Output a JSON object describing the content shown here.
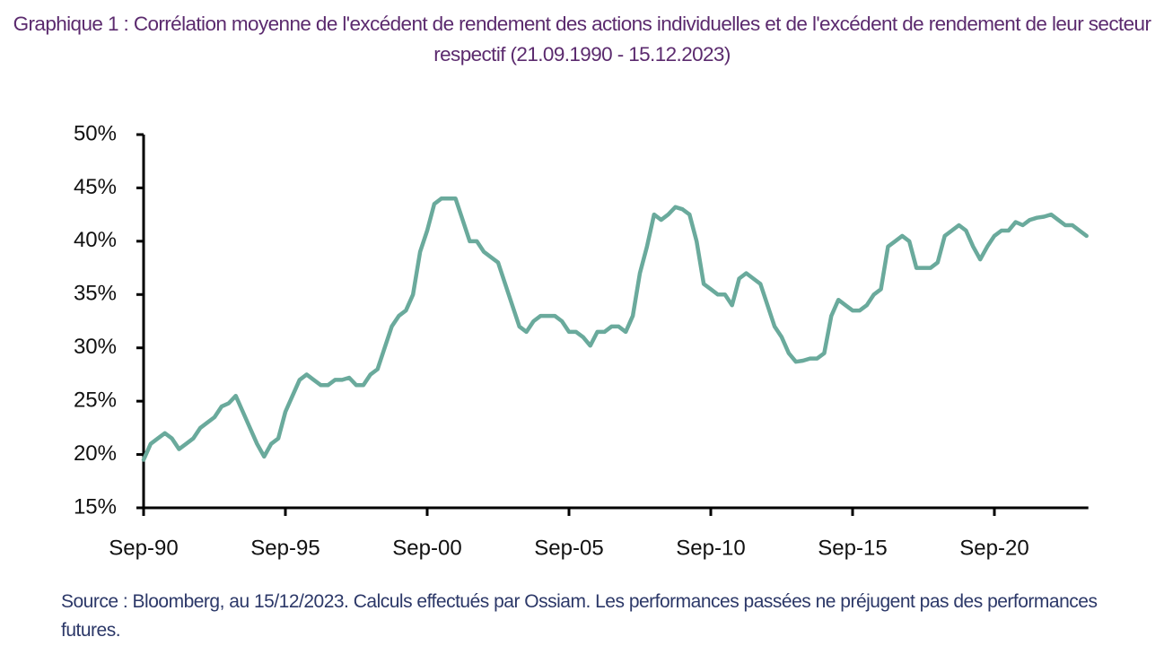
{
  "chart_data": {
    "type": "line",
    "title": "Graphique 1 : Corrélation moyenne de l'excédent de rendement des actions individuelles et de l'excédent de rendement de leur secteur respectif (21.09.1990 - 15.12.2023)",
    "source": "Source : Bloomberg, au 15/12/2023. Calculs effectués par Ossiam. Les performances passées ne préjugent pas des performances futures.",
    "categories": [
      "Sep-90",
      null,
      null,
      null,
      null,
      null,
      null,
      null,
      null,
      null,
      null,
      null,
      null,
      null,
      null,
      null,
      null,
      null,
      null,
      null,
      "Sep-95",
      null,
      null,
      null,
      null,
      null,
      null,
      null,
      null,
      null,
      null,
      null,
      null,
      null,
      null,
      null,
      null,
      null,
      null,
      null,
      "Sep-00",
      null,
      null,
      null,
      null,
      null,
      null,
      null,
      null,
      null,
      null,
      null,
      null,
      null,
      null,
      null,
      null,
      null,
      null,
      null,
      "Sep-05",
      null,
      null,
      null,
      null,
      null,
      null,
      null,
      null,
      null,
      null,
      null,
      null,
      null,
      null,
      null,
      null,
      null,
      null,
      null,
      "Sep-10",
      null,
      null,
      null,
      null,
      null,
      null,
      null,
      null,
      null,
      null,
      null,
      null,
      null,
      null,
      null,
      null,
      null,
      null,
      null,
      "Sep-15",
      null,
      null,
      null,
      null,
      null,
      null,
      null,
      null,
      null,
      null,
      null,
      null,
      null,
      null,
      null,
      null,
      null,
      null,
      null,
      "Sep-20",
      null,
      null,
      null,
      null,
      null,
      null,
      null,
      null,
      null,
      null,
      null,
      null,
      null
    ],
    "values": [
      19.5,
      21,
      21.5,
      22,
      21.5,
      20.5,
      21,
      21.5,
      22.5,
      23,
      23.5,
      24.5,
      24.8,
      25.5,
      24,
      22.5,
      21,
      19.8,
      21,
      21.5,
      24,
      25.5,
      27,
      27.5,
      27,
      26.5,
      26.5,
      27,
      27,
      27.2,
      26.5,
      26.5,
      27.5,
      28,
      30,
      32,
      33,
      33.5,
      35,
      39,
      41,
      43.5,
      44,
      44,
      44,
      42,
      40,
      40,
      39,
      38.5,
      38,
      36,
      34,
      32,
      31.5,
      32.5,
      33,
      33,
      33,
      32.5,
      31.5,
      31.5,
      31,
      30.2,
      31.5,
      31.5,
      32,
      32,
      31.5,
      33,
      37,
      39.5,
      42.5,
      42,
      42.5,
      43.2,
      43,
      42.5,
      40,
      36,
      35.5,
      35,
      35,
      34,
      36.5,
      37,
      36.5,
      36,
      34,
      32,
      31,
      29.5,
      28.7,
      28.8,
      29,
      29,
      29.5,
      33,
      34.5,
      34,
      33.5,
      33.5,
      34,
      35,
      35.5,
      39.5,
      40,
      40.5,
      40,
      37.5,
      37.5,
      37.5,
      38,
      40.5,
      41,
      41.5,
      41,
      39.5,
      38.3,
      39.5,
      40.5,
      41,
      41,
      41.8,
      41.5,
      42,
      42.2,
      42.3,
      42.5,
      42,
      41.5,
      41.5,
      41,
      40.5
    ],
    "color": "#6aaa9c",
    "ylim": [
      15,
      50
    ],
    "yticks": [
      {
        "value": 15,
        "label": "15%"
      },
      {
        "value": 20,
        "label": "20%"
      },
      {
        "value": 25,
        "label": "25%"
      },
      {
        "value": 30,
        "label": "30%"
      },
      {
        "value": 35,
        "label": "35%"
      },
      {
        "value": 40,
        "label": "40%"
      },
      {
        "value": 45,
        "label": "45%"
      },
      {
        "value": 50,
        "label": "50%"
      }
    ],
    "grid": false
  }
}
